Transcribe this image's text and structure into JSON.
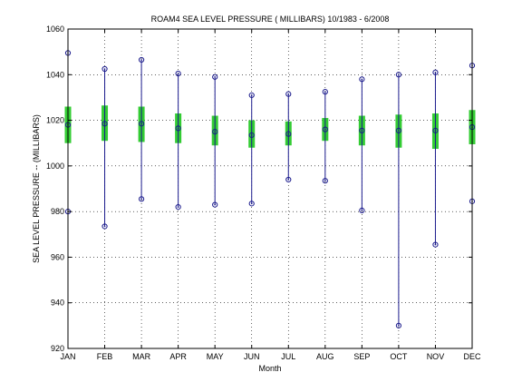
{
  "chart_data": {
    "type": "box",
    "title": "ROAM4  SEA LEVEL PRESSURE ( MILLIBARS) 10/1983 - 6/2008",
    "xlabel": "Month",
    "ylabel": "SEA LEVEL PRESSURE -- (MILLIBARS)",
    "categories": [
      "JAN",
      "FEB",
      "MAR",
      "APR",
      "MAY",
      "JUN",
      "JUL",
      "AUG",
      "SEP",
      "OCT",
      "NOV",
      "DEC"
    ],
    "ylim": [
      920,
      1060
    ],
    "yticks": [
      920,
      940,
      960,
      980,
      1000,
      1020,
      1040,
      1060
    ],
    "grid": true,
    "min": [
      980,
      973.5,
      985.5,
      982,
      983,
      983.5,
      994,
      993.5,
      980.5,
      930,
      965.5,
      984.5
    ],
    "max": [
      1049.5,
      1042.5,
      1046.5,
      1040.5,
      1039,
      1031,
      1031.5,
      1032.5,
      1038,
      1040,
      1041,
      1044
    ],
    "mean": [
      1018,
      1018.5,
      1018.5,
      1016.5,
      1015,
      1013.5,
      1014,
      1016,
      1015.5,
      1015.5,
      1015.5,
      1017
    ],
    "q_low": [
      1010,
      1011,
      1010.5,
      1010,
      1009,
      1008,
      1009,
      1011,
      1009,
      1008,
      1007.5,
      1009.5
    ],
    "q_high": [
      1026,
      1026.5,
      1026,
      1023,
      1022,
      1020,
      1019.5,
      1021,
      1022,
      1022.5,
      1023,
      1024.5
    ],
    "colors": {
      "whisker": "#1a1a8c",
      "box": "#33cc33",
      "marker": "#1a1a8c",
      "grid": "#000000"
    }
  }
}
